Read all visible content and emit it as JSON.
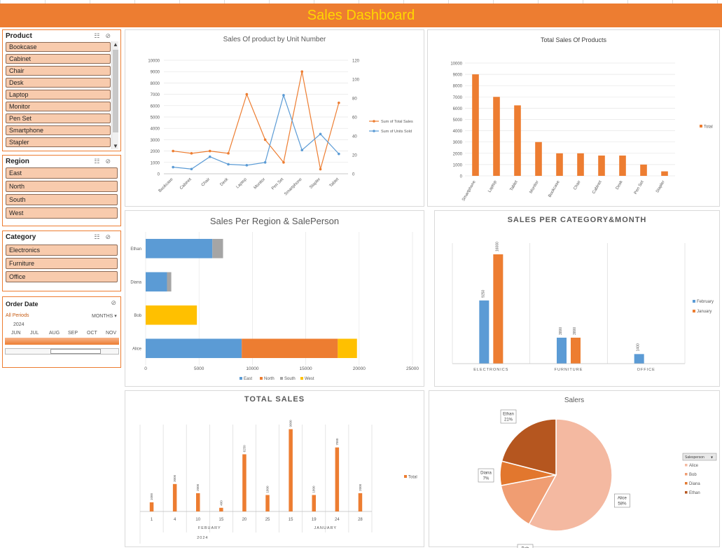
{
  "dashboard": {
    "title": "Sales Dashboard"
  },
  "slicers": {
    "product": {
      "title": "Product",
      "items": [
        "Bookcase",
        "Cabinet",
        "Chair",
        "Desk",
        "Laptop",
        "Monitor",
        "Pen Set",
        "Smartphone",
        "Stapler"
      ]
    },
    "region": {
      "title": "Region",
      "items": [
        "East",
        "North",
        "South",
        "West"
      ]
    },
    "category": {
      "title": "Category",
      "items": [
        "Electronics",
        "Furniture",
        "Office"
      ]
    },
    "order_date": {
      "title": "Order Date",
      "all_periods": "All Periods",
      "level": "MONTHS",
      "year": "2024",
      "months": [
        "JUN",
        "JUL",
        "AUG",
        "SEP",
        "OCT",
        "NOV"
      ]
    }
  },
  "colors": {
    "orange": "#ed7d31",
    "blue": "#5b9bd5",
    "gray": "#a5a5a5",
    "yellow": "#ffc000",
    "banner_text": "#ffd700",
    "slicer_item": "#f8cbad"
  },
  "icons": [
    "multi-select-icon",
    "clear-filter-icon",
    "scroll-up-icon",
    "scroll-down-icon",
    "dropdown-icon"
  ],
  "chart_data": [
    {
      "id": "units_chart",
      "type": "line",
      "title": "Sales Of product by Unit Number",
      "categories": [
        "Bookcase",
        "Cabinet",
        "Chair",
        "Desk",
        "Laptop",
        "Monitor",
        "Pen Set",
        "Smartphone",
        "Stapler",
        "Tablet"
      ],
      "series": [
        {
          "name": "Sum of Total Sales",
          "axis": "left",
          "values": [
            2000,
            1800,
            2000,
            1800,
            7000,
            3000,
            1000,
            9000,
            400,
            6250
          ]
        },
        {
          "name": "Sum of Units Sold",
          "axis": "right",
          "values": [
            7,
            5,
            18,
            10,
            9,
            12,
            83,
            25,
            42,
            21
          ]
        }
      ],
      "y_left": {
        "min": 0,
        "max": 10000,
        "ticks": [
          "0",
          "1000",
          "2000",
          "3000",
          "4000",
          "5000",
          "6000",
          "7000",
          "8000",
          "9000",
          "10000"
        ]
      },
      "y_right": {
        "min": 0,
        "max": 120,
        "ticks": [
          "0",
          "20",
          "40",
          "60",
          "80",
          "100",
          "120"
        ]
      },
      "legend": "right"
    },
    {
      "id": "total_products_chart",
      "type": "bar",
      "title": "Total Sales Of Products",
      "categories": [
        "Smartphone",
        "Laptop",
        "Tablet",
        "Monitor",
        "Bookcase",
        "Chair",
        "Cabinet",
        "Desk",
        "Pen Set",
        "Stapler"
      ],
      "series": [
        {
          "name": "Total",
          "values": [
            9000,
            7000,
            6250,
            3000,
            2000,
            2000,
            1800,
            1800,
            1000,
            400
          ]
        }
      ],
      "ylim": [
        0,
        10000
      ],
      "ticks": [
        "0",
        "1000",
        "2000",
        "3000",
        "4000",
        "5000",
        "6000",
        "7000",
        "8000",
        "9000",
        "10000"
      ],
      "legend": "right"
    },
    {
      "id": "region_chart",
      "type": "bar",
      "orientation": "horizontal-stacked",
      "title": "Sales Per Region & SalePerson",
      "categories": [
        "Ethan",
        "Diana",
        "Bob",
        "Alice"
      ],
      "series": [
        {
          "name": "East",
          "values": [
            6250,
            2000,
            0,
            9000
          ]
        },
        {
          "name": "North",
          "values": [
            0,
            0,
            0,
            9000
          ]
        },
        {
          "name": "South",
          "values": [
            1000,
            400,
            0,
            0
          ]
        },
        {
          "name": "West",
          "values": [
            0,
            0,
            4800,
            1800
          ]
        }
      ],
      "xlim": [
        0,
        25000
      ],
      "ticks": [
        "0",
        "5000",
        "10000",
        "15000",
        "20000",
        "25000"
      ],
      "legend": "bottom"
    },
    {
      "id": "category_chart",
      "type": "bar",
      "title": "SALES PER CATEGORY&MONTH",
      "categories": [
        "ELECTRONICS",
        "FURNITURE",
        "OFFICE"
      ],
      "series": [
        {
          "name": "February",
          "values": [
            9250,
            3800,
            1400
          ]
        },
        {
          "name": "January",
          "values": [
            16000,
            3800,
            0
          ]
        }
      ],
      "data_labels": [
        [
          "9250",
          "16000"
        ],
        [
          "3800",
          "3800"
        ],
        [
          "1400",
          ""
        ]
      ],
      "legend": "right"
    },
    {
      "id": "total_sales_chart",
      "type": "bar",
      "title": "TOTAL SALES",
      "x": [
        "1",
        "4",
        "10",
        "15",
        "20",
        "25",
        "15",
        "19",
        "24",
        "28"
      ],
      "groups": [
        {
          "label": "FEBUARY",
          "span": 6
        },
        {
          "label": "JANUARY",
          "span": 4
        }
      ],
      "year": "2024",
      "series": [
        {
          "name": "Total",
          "values": [
            1000,
            3000,
            2000,
            400,
            6250,
            1800,
            9000,
            1800,
            7000,
            2000
          ]
        }
      ],
      "data_labels": [
        "1000",
        "3000",
        "2000",
        "400",
        "6250",
        "1800",
        "9000",
        "1800",
        "7000",
        "2000"
      ],
      "legend": "right"
    },
    {
      "id": "salers_chart",
      "type": "pie",
      "title": "Salers",
      "legend_header": "Salesperson",
      "slices": [
        {
          "name": "Alice",
          "value": 58,
          "label": "58%",
          "color": "#f4b9a1"
        },
        {
          "name": "Bob",
          "value": 14,
          "label": "14%",
          "color": "#f09d72"
        },
        {
          "name": "Diana",
          "value": 7,
          "label": "7%",
          "color": "#e2772e"
        },
        {
          "name": "Ethan",
          "value": 21,
          "label": "21%",
          "color": "#b5561f"
        }
      ],
      "legend": "right"
    }
  ]
}
